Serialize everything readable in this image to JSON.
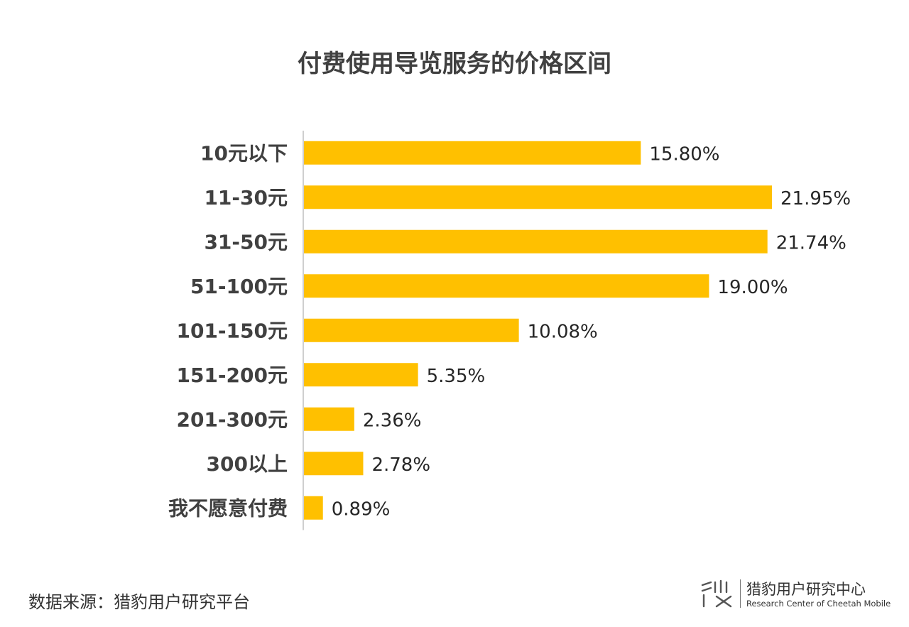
{
  "source_label": "数据来源：猎豹用户研究平台",
  "brand": {
    "name_zh": "猎豹用户研究中心",
    "name_en": "Research Center of Cheetah Mobile",
    "logo_icon": "cheetah-research-logo-icon"
  },
  "colors": {
    "bar": "#FFC000",
    "text": "#404040",
    "axis": "#BFBFBF"
  },
  "chart_data": {
    "type": "bar",
    "orientation": "horizontal",
    "title": "付费使用导览服务的价格区间",
    "categories": [
      "10元以下",
      "11-30元",
      "31-50元",
      "51-100元",
      "101-150元",
      "151-200元",
      "201-300元",
      "300以上",
      "我不愿意付费"
    ],
    "values": [
      15.8,
      21.95,
      21.74,
      19.0,
      10.08,
      5.35,
      2.36,
      2.78,
      0.89
    ],
    "value_labels": [
      "15.80%",
      "21.95%",
      "21.74%",
      "19.00%",
      "10.08%",
      "5.35%",
      "2.36%",
      "2.78%",
      "0.89%"
    ],
    "xlim": [
      0,
      21.95
    ],
    "grid": false,
    "legend": "none"
  }
}
